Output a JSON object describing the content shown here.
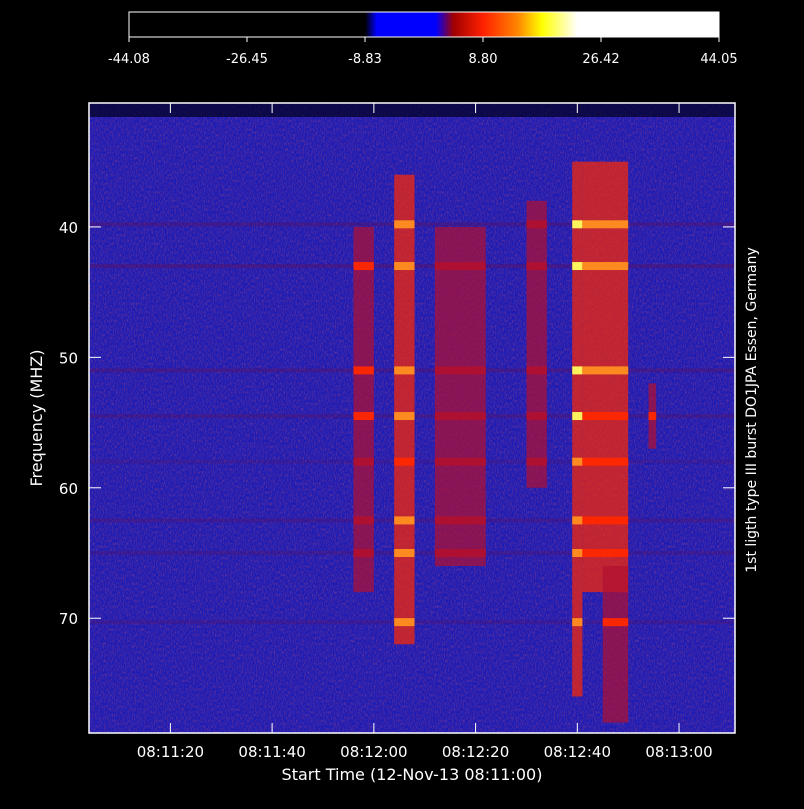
{
  "chart_data": {
    "type": "heatmap",
    "title": "",
    "xlabel": "Start Time (12-Nov-13 08:11:00)",
    "ylabel": "Frequency (MHZ)",
    "right_label": "1st ligth type III burst DO1JPA Essen, Germany",
    "x_range_seconds": [
      4,
      131
    ],
    "x_ticks": [
      {
        "t": 20,
        "label": "08:11:20"
      },
      {
        "t": 40,
        "label": "08:11:40"
      },
      {
        "t": 60,
        "label": "08:12:00"
      },
      {
        "t": 80,
        "label": "08:12:20"
      },
      {
        "t": 100,
        "label": "08:12:40"
      },
      {
        "t": 120,
        "label": "08:13:00"
      }
    ],
    "y_range": [
      30.5,
      78.8
    ],
    "y_ticks": [
      {
        "v": 40,
        "label": "40"
      },
      {
        "v": 50,
        "label": "50"
      },
      {
        "v": 60,
        "label": "60"
      },
      {
        "v": 70,
        "label": "70"
      }
    ],
    "colorbar": {
      "range": [
        -44.08,
        44.05
      ],
      "tick_labels": [
        "-44.08",
        "-26.45",
        "-8.83",
        "8.80",
        "26.42",
        "44.05"
      ],
      "colors": [
        "#000000",
        "#0000ff",
        "#a00000",
        "#ff2000",
        "#ffff00",
        "#ffffff"
      ]
    },
    "background_color": "#1a1ab0",
    "bursts": [
      {
        "t_start": 64,
        "t_end": 68,
        "f_start": 36,
        "f_end": 72,
        "intensity": 0.9
      },
      {
        "t_start": 99,
        "t_end": 101,
        "f_start": 35,
        "f_end": 76,
        "intensity": 1.0
      },
      {
        "t_start": 101,
        "t_end": 110,
        "f_start": 35,
        "f_end": 68,
        "intensity": 0.8
      },
      {
        "t_start": 105,
        "t_end": 110,
        "f_start": 66,
        "f_end": 78,
        "intensity": 0.7
      },
      {
        "t_start": 56,
        "t_end": 60,
        "f_start": 40,
        "f_end": 68,
        "intensity": 0.6
      },
      {
        "t_start": 72,
        "t_end": 82,
        "f_start": 40,
        "f_end": 66,
        "intensity": 0.55
      },
      {
        "t_start": 90,
        "t_end": 94,
        "f_start": 38,
        "f_end": 60,
        "intensity": 0.55
      },
      {
        "t_start": 114,
        "t_end": 115.5,
        "f_start": 52,
        "f_end": 57,
        "intensity": 0.7
      }
    ],
    "bands": [
      {
        "f": 39.8,
        "intensity": 0.7
      },
      {
        "f": 43.0,
        "intensity": 0.8
      },
      {
        "f": 51.0,
        "intensity": 0.7
      },
      {
        "f": 54.5,
        "intensity": 0.65
      },
      {
        "f": 58.0,
        "intensity": 0.4
      },
      {
        "f": 62.5,
        "intensity": 0.6
      },
      {
        "f": 65.0,
        "intensity": 0.55
      },
      {
        "f": 70.3,
        "intensity": 0.5
      }
    ]
  }
}
